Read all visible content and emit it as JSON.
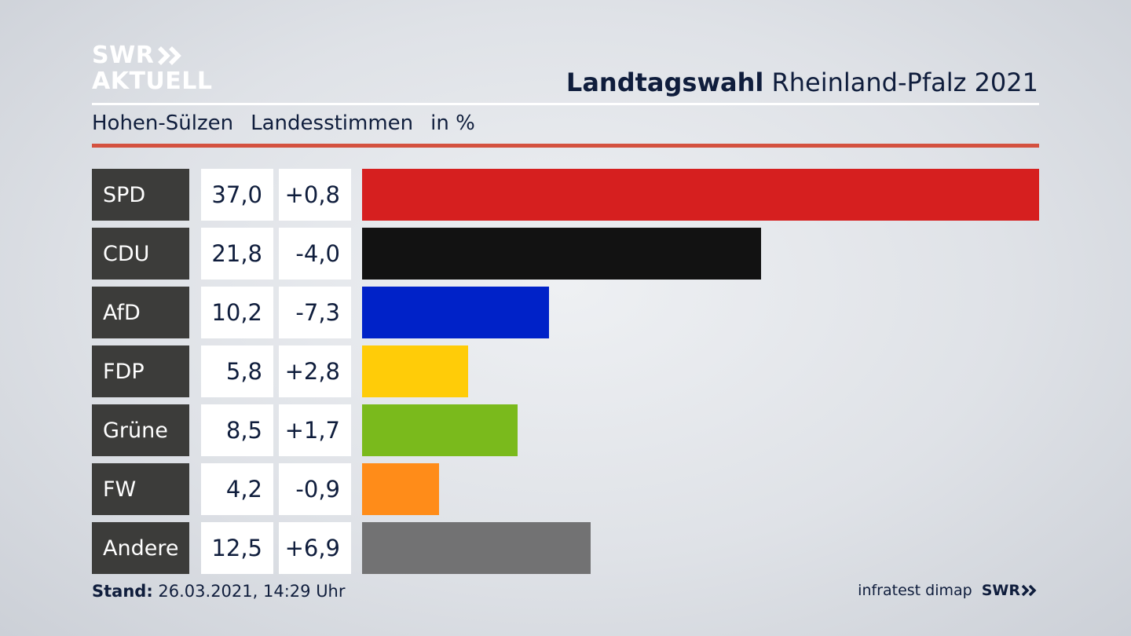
{
  "logo": {
    "line1": "SWR",
    "line2": "AKTUELL"
  },
  "header": {
    "title_bold": "Landtagswahl",
    "title_rest": "Rheinland-Pfalz 2021"
  },
  "subtitle": {
    "place": "Hohen-Sülzen",
    "type": "Landesstimmen",
    "unit": "in %"
  },
  "footer": {
    "stand_label": "Stand:",
    "stand_value": "26.03.2021, 14:29 Uhr",
    "source": "infratest dimap",
    "brand": "SWR"
  },
  "chart_data": {
    "type": "bar",
    "orientation": "horizontal",
    "categories": [
      "SPD",
      "CDU",
      "AfD",
      "FDP",
      "Grüne",
      "FW",
      "Andere"
    ],
    "values": [
      37.0,
      21.8,
      10.2,
      5.8,
      8.5,
      4.2,
      12.5
    ],
    "value_labels": [
      "37,0",
      "21,8",
      "10,2",
      "5,8",
      "8,5",
      "4,2",
      "12,5"
    ],
    "diffs": [
      0.8,
      -4.0,
      -7.3,
      2.8,
      1.7,
      -0.9,
      6.9
    ],
    "diff_labels": [
      "+0,8",
      "-4,0",
      "-7,3",
      "+2,8",
      "+1,7",
      "-0,9",
      "+6,9"
    ],
    "colors": [
      "#d61f1f",
      "#121212",
      "#0022c8",
      "#ffcc08",
      "#7aba1c",
      "#ff8c19",
      "#727273"
    ],
    "xlim": [
      0,
      37.0
    ],
    "grid": false,
    "legend": "none"
  }
}
